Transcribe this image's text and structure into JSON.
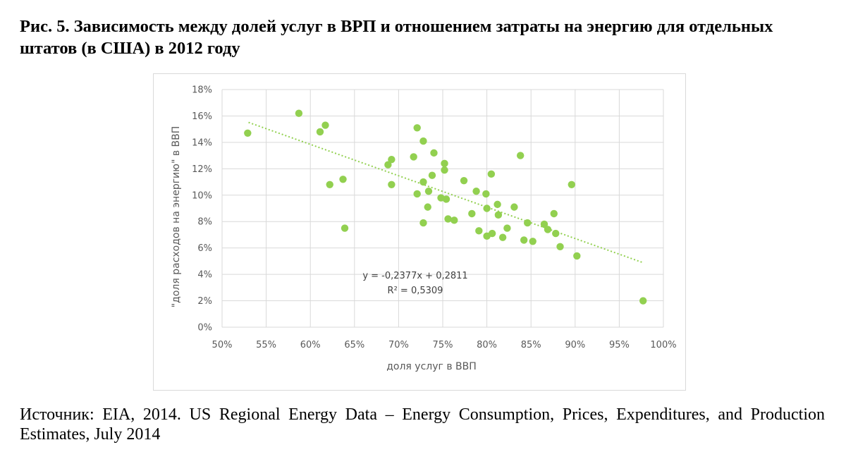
{
  "figure": {
    "title": "Рис. 5. Зависимость между долей услуг в ВРП и отношением затраты на энергию для отдельных штатов (в США) в 2012 году",
    "source": "Источник: EIA, 2014. US Regional Energy Data – Energy Consumption, Prices, Expenditures, and Production Estimates, July 2014"
  },
  "chart_data": {
    "type": "scatter",
    "title": "",
    "xlabel": "доля услуг в ВВП",
    "ylabel": "\"доля расходов на энергию\" в ВВП",
    "xlim": [
      0.5,
      1.0
    ],
    "ylim": [
      0,
      0.18
    ],
    "x_ticks": [
      0.5,
      0.55,
      0.6,
      0.65,
      0.7,
      0.75,
      0.8,
      0.85,
      0.9,
      0.95,
      1.0
    ],
    "x_tick_labels": [
      "50%",
      "55%",
      "60%",
      "65%",
      "70%",
      "75%",
      "80%",
      "85%",
      "90%",
      "95%",
      "100%"
    ],
    "y_ticks": [
      0,
      0.02,
      0.04,
      0.06,
      0.08,
      0.1,
      0.12,
      0.14,
      0.16,
      0.18
    ],
    "y_tick_labels": [
      "0%",
      "2%",
      "4%",
      "6%",
      "8%",
      "10%",
      "12%",
      "14%",
      "16%",
      "18%"
    ],
    "grid": true,
    "marker_color": "#92d050",
    "trendline_color": "#92d050",
    "trendline": {
      "slope": -0.2377,
      "intercept": 0.2811,
      "x_range": [
        0.53,
        0.977
      ],
      "equation_label": "y = -0,2377x + 0,2811",
      "r2_label": "R² = 0,5309"
    },
    "points": [
      {
        "x": 0.529,
        "y": 0.147
      },
      {
        "x": 0.587,
        "y": 0.162
      },
      {
        "x": 0.611,
        "y": 0.148
      },
      {
        "x": 0.617,
        "y": 0.153
      },
      {
        "x": 0.622,
        "y": 0.108
      },
      {
        "x": 0.637,
        "y": 0.112
      },
      {
        "x": 0.639,
        "y": 0.075
      },
      {
        "x": 0.688,
        "y": 0.123
      },
      {
        "x": 0.692,
        "y": 0.127
      },
      {
        "x": 0.692,
        "y": 0.108
      },
      {
        "x": 0.717,
        "y": 0.129
      },
      {
        "x": 0.721,
        "y": 0.151
      },
      {
        "x": 0.721,
        "y": 0.101
      },
      {
        "x": 0.728,
        "y": 0.141
      },
      {
        "x": 0.728,
        "y": 0.11
      },
      {
        "x": 0.728,
        "y": 0.079
      },
      {
        "x": 0.733,
        "y": 0.091
      },
      {
        "x": 0.734,
        "y": 0.103
      },
      {
        "x": 0.738,
        "y": 0.115
      },
      {
        "x": 0.74,
        "y": 0.132
      },
      {
        "x": 0.748,
        "y": 0.098
      },
      {
        "x": 0.752,
        "y": 0.124
      },
      {
        "x": 0.752,
        "y": 0.119
      },
      {
        "x": 0.754,
        "y": 0.097
      },
      {
        "x": 0.756,
        "y": 0.082
      },
      {
        "x": 0.763,
        "y": 0.081
      },
      {
        "x": 0.774,
        "y": 0.111
      },
      {
        "x": 0.783,
        "y": 0.086
      },
      {
        "x": 0.788,
        "y": 0.103
      },
      {
        "x": 0.791,
        "y": 0.073
      },
      {
        "x": 0.799,
        "y": 0.101
      },
      {
        "x": 0.8,
        "y": 0.09
      },
      {
        "x": 0.8,
        "y": 0.069
      },
      {
        "x": 0.805,
        "y": 0.116
      },
      {
        "x": 0.806,
        "y": 0.071
      },
      {
        "x": 0.812,
        "y": 0.093
      },
      {
        "x": 0.813,
        "y": 0.085
      },
      {
        "x": 0.818,
        "y": 0.068
      },
      {
        "x": 0.823,
        "y": 0.075
      },
      {
        "x": 0.831,
        "y": 0.091
      },
      {
        "x": 0.838,
        "y": 0.13
      },
      {
        "x": 0.842,
        "y": 0.066
      },
      {
        "x": 0.846,
        "y": 0.079
      },
      {
        "x": 0.852,
        "y": 0.065
      },
      {
        "x": 0.865,
        "y": 0.078
      },
      {
        "x": 0.869,
        "y": 0.074
      },
      {
        "x": 0.876,
        "y": 0.086
      },
      {
        "x": 0.878,
        "y": 0.071
      },
      {
        "x": 0.883,
        "y": 0.061
      },
      {
        "x": 0.896,
        "y": 0.108
      },
      {
        "x": 0.902,
        "y": 0.054
      },
      {
        "x": 0.977,
        "y": 0.02
      }
    ]
  }
}
